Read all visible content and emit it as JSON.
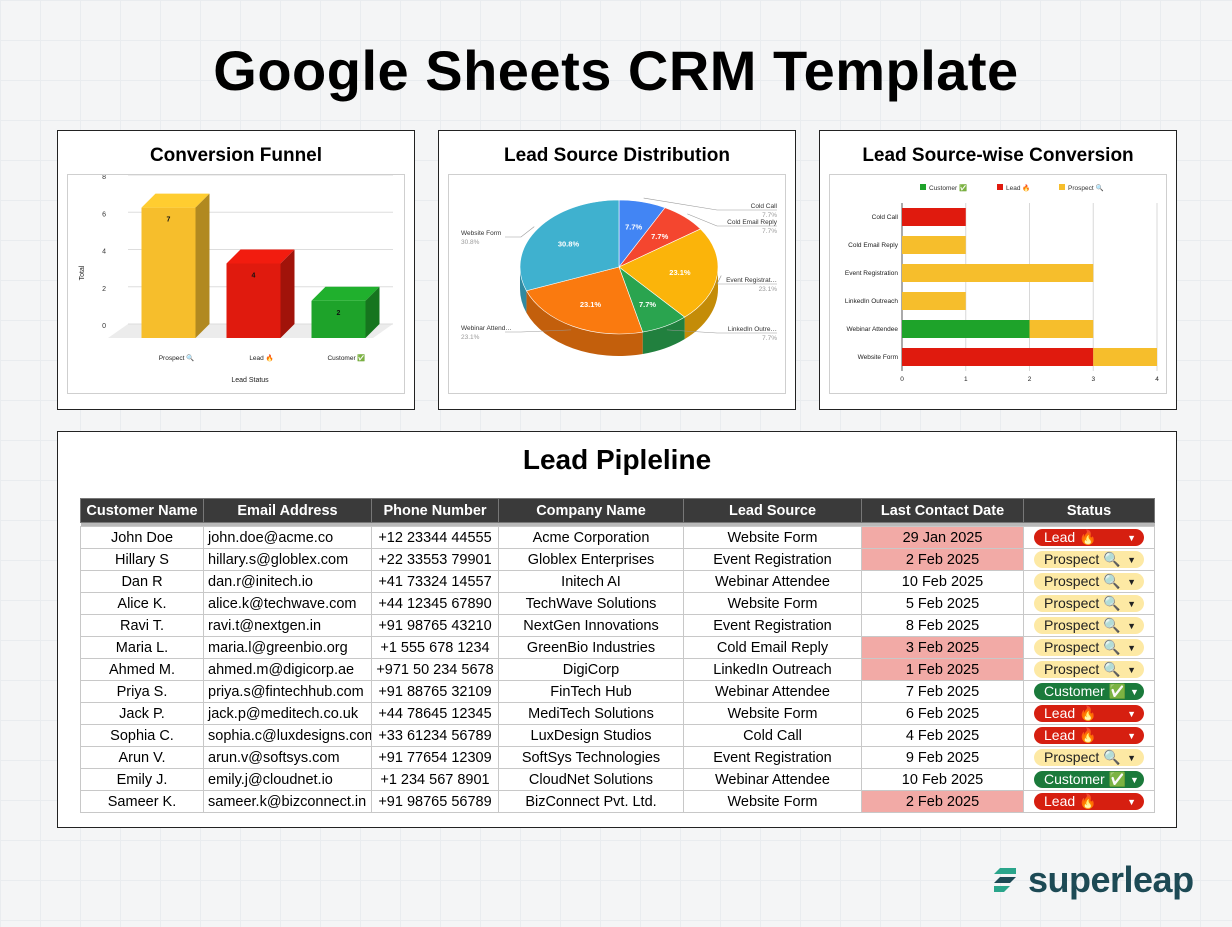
{
  "page_title": "Google Sheets CRM Template",
  "charts": {
    "funnel": {
      "title": "Conversion Funnel",
      "chart_data": {
        "type": "bar",
        "categories": [
          "Prospect 🔍",
          "Lead 🔥",
          "Customer ✅"
        ],
        "values": [
          7,
          4,
          2
        ],
        "colors": [
          "#f6be2c",
          "#e01a0e",
          "#1ea32a"
        ],
        "xlabel": "Lead Status",
        "ylabel": "Total",
        "ylim": [
          0,
          8
        ],
        "yticks": [
          "0",
          "2",
          "4",
          "6",
          "8"
        ],
        "grid": true
      }
    },
    "distribution": {
      "title": "Lead Source Distribution",
      "chart_data": {
        "type": "pie",
        "categories": [
          "Cold Call",
          "Cold Email Reply",
          "Event Registrat…",
          "LinkedIn Outre…",
          "Webinar Attend…",
          "Website Form"
        ],
        "values": [
          7.7,
          7.7,
          23.1,
          7.7,
          23.1,
          30.8
        ],
        "labels": [
          "7.7%",
          "7.7%",
          "23.1%",
          "7.7%",
          "23.1%",
          "30.8%"
        ],
        "colors": [
          "#4285f4",
          "#f4462f",
          "#fbb40a",
          "#2aa44f",
          "#fa7a0f",
          "#3fb1cf"
        ]
      }
    },
    "conversion": {
      "title": "Lead Source-wise Conversion",
      "chart_data": {
        "type": "bar",
        "orientation": "horizontal",
        "stacked": true,
        "categories": [
          "Cold Call",
          "Cold Email Reply",
          "Event Registration",
          "LinkedIn Outreach",
          "Webinar Attendee",
          "Website Form"
        ],
        "series": [
          {
            "name": "Customer ✅",
            "color": "#1ea32a",
            "values": [
              0,
              0,
              0,
              0,
              2,
              0
            ]
          },
          {
            "name": "Lead 🔥",
            "color": "#e01a0e",
            "values": [
              1,
              0,
              0,
              0,
              0,
              3
            ]
          },
          {
            "name": "Prospect 🔍",
            "color": "#f6be2c",
            "values": [
              0,
              1,
              3,
              1,
              1,
              1
            ]
          }
        ],
        "xlim": [
          0,
          4
        ],
        "xticks": [
          "0",
          "1",
          "2",
          "3",
          "4"
        ],
        "legend": "top"
      }
    }
  },
  "pipeline": {
    "title": "Lead Pipleline",
    "columns": [
      "Customer Name",
      "Email Address",
      "Phone Number",
      "Company Name",
      "Lead Source",
      "Last Contact Date",
      "Status"
    ],
    "rows": [
      {
        "name": "John Doe",
        "email": "john.doe@acme.co",
        "phone": "+12 23344 44555",
        "company": "Acme Corporation",
        "source": "Website Form",
        "date": "29 Jan 2025",
        "date_highlight": true,
        "status": "Lead 🔥",
        "status_type": "lead"
      },
      {
        "name": "Hillary S",
        "email": "hillary.s@globlex.com",
        "phone": "+22 33553 79901",
        "company": "Globlex Enterprises",
        "source": "Event Registration",
        "date": "2 Feb 2025",
        "date_highlight": true,
        "status": "Prospect 🔍",
        "status_type": "prospect"
      },
      {
        "name": "Dan R",
        "email": "dan.r@initech.io",
        "phone": "+41 73324 14557",
        "company": "Initech AI",
        "source": "Webinar Attendee",
        "date": "10 Feb 2025",
        "date_highlight": false,
        "status": "Prospect 🔍",
        "status_type": "prospect"
      },
      {
        "name": "Alice K.",
        "email": "alice.k@techwave.com",
        "phone": "+44 12345 67890",
        "company": "TechWave Solutions",
        "source": "Website Form",
        "date": "5 Feb 2025",
        "date_highlight": false,
        "status": "Prospect 🔍",
        "status_type": "prospect"
      },
      {
        "name": "Ravi T.",
        "email": "ravi.t@nextgen.in",
        "phone": "+91 98765 43210",
        "company": "NextGen Innovations",
        "source": "Event Registration",
        "date": "8 Feb 2025",
        "date_highlight": false,
        "status": "Prospect 🔍",
        "status_type": "prospect"
      },
      {
        "name": "Maria L.",
        "email": "maria.l@greenbio.org",
        "phone": "+1 555 678 1234",
        "company": "GreenBio Industries",
        "source": "Cold Email Reply",
        "date": "3 Feb 2025",
        "date_highlight": true,
        "status": "Prospect 🔍",
        "status_type": "prospect"
      },
      {
        "name": "Ahmed M.",
        "email": "ahmed.m@digicorp.ae",
        "phone": "+971 50 234 5678",
        "company": "DigiCorp",
        "source": "LinkedIn Outreach",
        "date": "1 Feb 2025",
        "date_highlight": true,
        "status": "Prospect 🔍",
        "status_type": "prospect"
      },
      {
        "name": "Priya S.",
        "email": "priya.s@fintechhub.com",
        "phone": "+91 88765 32109",
        "company": "FinTech Hub",
        "source": "Webinar Attendee",
        "date": "7 Feb 2025",
        "date_highlight": false,
        "status": "Customer ✅",
        "status_type": "customer"
      },
      {
        "name": "Jack P.",
        "email": "jack.p@meditech.co.uk",
        "phone": "+44 78645 12345",
        "company": "MediTech Solutions",
        "source": "Website Form",
        "date": "6 Feb 2025",
        "date_highlight": false,
        "status": "Lead 🔥",
        "status_type": "lead"
      },
      {
        "name": "Sophia C.",
        "email": "sophia.c@luxdesigns.com",
        "phone": "+33 61234 56789",
        "company": "LuxDesign Studios",
        "source": "Cold Call",
        "date": "4 Feb 2025",
        "date_highlight": false,
        "status": "Lead 🔥",
        "status_type": "lead"
      },
      {
        "name": "Arun V.",
        "email": "arun.v@softsys.com",
        "phone": "+91 77654 12309",
        "company": "SoftSys Technologies",
        "source": "Event Registration",
        "date": "9 Feb 2025",
        "date_highlight": false,
        "status": "Prospect 🔍",
        "status_type": "prospect"
      },
      {
        "name": "Emily J.",
        "email": "emily.j@cloudnet.io",
        "phone": "+1 234 567 8901",
        "company": "CloudNet Solutions",
        "source": "Webinar Attendee",
        "date": "10 Feb 2025",
        "date_highlight": false,
        "status": "Customer ✅",
        "status_type": "customer"
      },
      {
        "name": "Sameer K.",
        "email": "sameer.k@bizconnect.in",
        "phone": "+91 98765 56789",
        "company": "BizConnect Pvt. Ltd.",
        "source": "Website Form",
        "date": "2 Feb 2025",
        "date_highlight": true,
        "status": "Lead 🔥",
        "status_type": "lead"
      }
    ]
  },
  "brand": {
    "name": "superleap",
    "color": "#1d4a55",
    "accent": "#2aa58b",
    "icon": "superleap-logo-icon"
  }
}
